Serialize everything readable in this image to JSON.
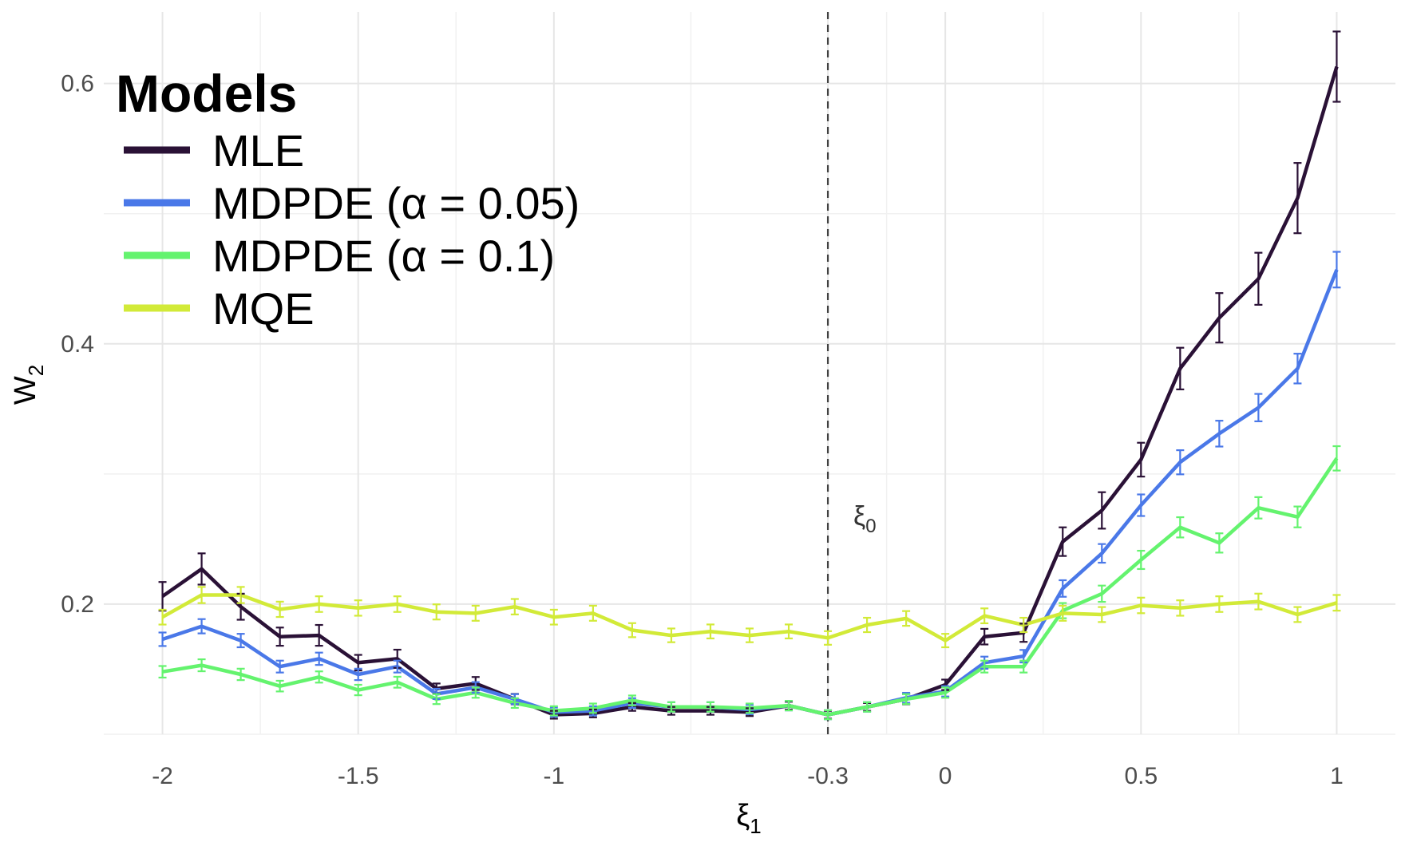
{
  "chart_data": {
    "type": "line",
    "xlabel": "ξ",
    "xlabel_sub": "1",
    "ylabel": "W",
    "ylabel_sub": "2",
    "xlim": [
      -2.15,
      1.15
    ],
    "ylim": [
      0.1,
      0.655
    ],
    "x_ticks": [
      -2,
      -1.5,
      -1,
      -0.3,
      0,
      0.5,
      1
    ],
    "x_tick_labels": [
      "-2",
      "-1.5",
      "-1",
      "-0.3",
      "0",
      "0.5",
      "1"
    ],
    "x_minor_gridlines": [
      -1.75,
      -1.25,
      -0.65,
      -0.15,
      0.25,
      0.75
    ],
    "y_ticks": [
      0.2,
      0.4,
      0.6
    ],
    "y_tick_labels": [
      "0.2",
      "0.4",
      "0.6"
    ],
    "y_minor_gridlines": [
      0.1,
      0.3,
      0.5
    ],
    "grid": true,
    "reference_line": {
      "x": -0.3,
      "style": "dashed",
      "label": "ξ",
      "label_sub": "0"
    },
    "legend": {
      "title": "Models",
      "position": "top-left"
    },
    "x": [
      -2,
      -1.9,
      -1.8,
      -1.7,
      -1.6,
      -1.5,
      -1.4,
      -1.3,
      -1.2,
      -1.1,
      -1,
      -0.9,
      -0.8,
      -0.7,
      -0.6,
      -0.5,
      -0.4,
      -0.3,
      -0.2,
      -0.1,
      0,
      0.1,
      0.2,
      0.3,
      0.4,
      0.5,
      0.6,
      0.7,
      0.8,
      0.9,
      1
    ],
    "series": [
      {
        "name": "MLE",
        "color": "#2a1136",
        "values": [
          0.206,
          0.227,
          0.198,
          0.175,
          0.176,
          0.155,
          0.158,
          0.135,
          0.139,
          0.127,
          0.115,
          0.116,
          0.121,
          0.118,
          0.118,
          0.117,
          0.122,
          0.115,
          0.121,
          0.127,
          0.138,
          0.175,
          0.178,
          0.248,
          0.272,
          0.311,
          0.381,
          0.42,
          0.45,
          0.512,
          0.613
        ],
        "errors": [
          0.011,
          0.012,
          0.01,
          0.007,
          0.008,
          0.006,
          0.007,
          0.004,
          0.005,
          0.004,
          0.003,
          0.003,
          0.003,
          0.003,
          0.003,
          0.003,
          0.003,
          0.003,
          0.003,
          0.004,
          0.004,
          0.006,
          0.007,
          0.011,
          0.014,
          0.013,
          0.016,
          0.019,
          0.02,
          0.027,
          0.027
        ]
      },
      {
        "name": "MDPDE (α = 0.05)",
        "color": "#4a78e8",
        "values": [
          0.173,
          0.183,
          0.172,
          0.152,
          0.158,
          0.146,
          0.152,
          0.131,
          0.136,
          0.127,
          0.117,
          0.118,
          0.124,
          0.121,
          0.121,
          0.119,
          0.122,
          0.115,
          0.121,
          0.128,
          0.133,
          0.155,
          0.16,
          0.212,
          0.239,
          0.276,
          0.309,
          0.331,
          0.351,
          0.381,
          0.457
        ]
      },
      {
        "name": "MDPDE (α = 0.1)",
        "color": "#64f36e",
        "values": [
          0.148,
          0.153,
          0.146,
          0.137,
          0.144,
          0.134,
          0.14,
          0.127,
          0.132,
          0.124,
          0.118,
          0.12,
          0.126,
          0.121,
          0.121,
          0.12,
          0.122,
          0.115,
          0.121,
          0.127,
          0.132,
          0.152,
          0.152,
          0.195,
          0.208,
          0.234,
          0.259,
          0.247,
          0.274,
          0.267,
          0.312
        ]
      },
      {
        "name": "MQE",
        "color": "#d2ea38",
        "values": [
          0.19,
          0.207,
          0.207,
          0.196,
          0.2,
          0.197,
          0.2,
          0.194,
          0.193,
          0.198,
          0.19,
          0.193,
          0.18,
          0.176,
          0.179,
          0.176,
          0.179,
          0.174,
          0.184,
          0.189,
          0.172,
          0.191,
          0.184,
          0.193,
          0.192,
          0.199,
          0.197,
          0.2,
          0.202,
          0.192,
          0.201
        ]
      }
    ]
  }
}
